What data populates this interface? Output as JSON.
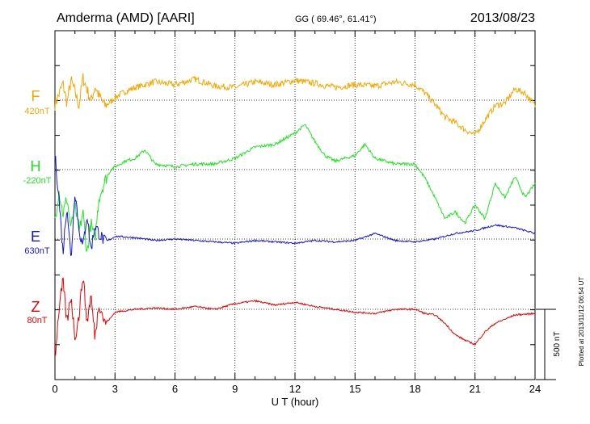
{
  "header": {
    "station": "Amderma (AMD)  [AARI]",
    "coords": "GG ( 69.46°,  61.41°)",
    "date": "2013/08/23"
  },
  "footer_note": "Plotted at 2013/11/12 06:54 UT",
  "chart_data": {
    "type": "line",
    "title": "Amderma (AMD)  [AARI]",
    "xlabel": "U T (hour)",
    "xlim": [
      0,
      24
    ],
    "x_ticks": [
      "0",
      "3",
      "6",
      "9",
      "12",
      "15",
      "18",
      "21",
      "24"
    ],
    "grid": true,
    "scale_bar": {
      "label": "500 nT",
      "value": 500
    },
    "series": [
      {
        "name": "F",
        "baseline": "420nT",
        "color": "#f5a800",
        "x": [
          0,
          0.2,
          0.4,
          0.6,
          0.8,
          1.0,
          1.2,
          1.4,
          1.6,
          1.8,
          2.0,
          2.2,
          2.5,
          2.8,
          3.0,
          3.5,
          4.0,
          5.0,
          6.0,
          7.0,
          8.0,
          9.0,
          10.0,
          11.0,
          12.0,
          13.0,
          14.0,
          15.0,
          16.0,
          17.0,
          18.0,
          18.5,
          19.0,
          19.5,
          20.0,
          20.5,
          21.0,
          21.5,
          22.0,
          22.5,
          23.0,
          23.5,
          24.0
        ],
        "y": [
          -30,
          40,
          120,
          -20,
          140,
          60,
          -40,
          160,
          80,
          -10,
          100,
          30,
          -40,
          -10,
          20,
          60,
          90,
          130,
          110,
          150,
          100,
          90,
          130,
          110,
          140,
          120,
          90,
          110,
          100,
          130,
          110,
          50,
          -30,
          -120,
          -160,
          -210,
          -250,
          -140,
          -40,
          -20,
          80,
          50,
          -40
        ]
      },
      {
        "name": "H",
        "baseline": "-220nT",
        "color": "#1ee61e",
        "x": [
          0,
          0.2,
          0.4,
          0.6,
          0.8,
          1.0,
          1.2,
          1.4,
          1.6,
          1.8,
          2.0,
          2.2,
          2.5,
          2.8,
          3.0,
          3.5,
          4.0,
          4.5,
          5.0,
          6.0,
          7.0,
          8.0,
          9.0,
          10.0,
          11.0,
          12.0,
          12.5,
          13.0,
          13.5,
          14.0,
          15.0,
          15.5,
          16.0,
          17.0,
          18.0,
          18.5,
          19.0,
          19.5,
          20.0,
          20.5,
          21.0,
          21.5,
          22.0,
          22.5,
          23.0,
          23.5,
          24.0
        ],
        "y": [
          -360,
          -150,
          -320,
          -200,
          -420,
          -250,
          -450,
          -300,
          -600,
          -380,
          -500,
          -200,
          -80,
          0,
          20,
          60,
          80,
          140,
          40,
          20,
          40,
          40,
          80,
          160,
          180,
          260,
          320,
          200,
          100,
          60,
          100,
          180,
          80,
          40,
          40,
          -60,
          -200,
          -350,
          -300,
          -380,
          -250,
          -350,
          -100,
          -200,
          -50,
          -200,
          -100
        ]
      },
      {
        "name": "E",
        "baseline": "630nT",
        "color": "#1414dc",
        "x": [
          0,
          0.2,
          0.4,
          0.6,
          0.8,
          1.0,
          1.2,
          1.4,
          1.6,
          1.8,
          2.0,
          2.2,
          2.5,
          2.8,
          3.0,
          4.0,
          5.0,
          6.0,
          7.0,
          8.0,
          9.0,
          10.0,
          11.0,
          12.0,
          13.0,
          14.0,
          15.0,
          16.0,
          17.0,
          18.0,
          19.0,
          20.0,
          21.0,
          22.0,
          23.0,
          24.0
        ],
        "y": [
          600,
          300,
          -100,
          250,
          -150,
          350,
          80,
          -60,
          180,
          -80,
          100,
          40,
          -20,
          0,
          20,
          10,
          -10,
          0,
          -10,
          -20,
          -30,
          -10,
          -20,
          -30,
          -10,
          -20,
          -10,
          40,
          -10,
          -20,
          0,
          40,
          60,
          100,
          80,
          40
        ]
      },
      {
        "name": "Z",
        "baseline": "80nT",
        "color": "#e60000",
        "x": [
          0,
          0.2,
          0.4,
          0.6,
          0.8,
          1.0,
          1.2,
          1.4,
          1.6,
          1.8,
          2.0,
          2.2,
          2.5,
          2.8,
          3.0,
          3.5,
          4.0,
          5.0,
          6.0,
          7.0,
          8.0,
          9.0,
          10.0,
          11.0,
          12.0,
          13.0,
          14.0,
          15.0,
          16.0,
          17.0,
          18.0,
          18.5,
          19.0,
          19.5,
          20.0,
          20.5,
          21.0,
          21.5,
          22.0,
          23.0,
          24.0
        ],
        "y": [
          -350,
          0,
          200,
          -100,
          100,
          -200,
          -50,
          250,
          -100,
          100,
          -200,
          50,
          -100,
          -60,
          -20,
          -10,
          0,
          10,
          0,
          20,
          0,
          40,
          60,
          30,
          50,
          20,
          0,
          -20,
          -30,
          0,
          0,
          -30,
          -40,
          -100,
          -180,
          -220,
          -250,
          -160,
          -100,
          -40,
          -30
        ]
      }
    ]
  }
}
